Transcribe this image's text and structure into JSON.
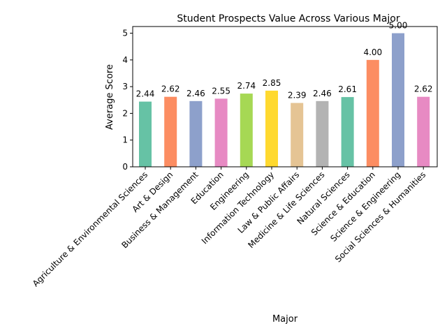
{
  "chart_data": {
    "type": "bar",
    "title": "Student Prospects Value Across Various Major",
    "xlabel": "Major",
    "ylabel": "Average Score",
    "ylim": [
      0,
      5.25
    ],
    "yticks": [
      "0",
      "1",
      "2",
      "3",
      "4",
      "5"
    ],
    "grid": false,
    "categories": [
      "Agriculture & Environmental Sciences",
      "Art & Design",
      "Business & Management",
      "Education",
      "Engineering",
      "Information Technology",
      "Law & Public Affairs",
      "Medicine & Life Sciences",
      "Natural Sciences",
      "Science & Education",
      "Science & Engineering",
      "Social Sciences & Humanities"
    ],
    "values": [
      2.44,
      2.62,
      2.46,
      2.55,
      2.74,
      2.85,
      2.39,
      2.46,
      2.61,
      4.0,
      5.0,
      2.62
    ],
    "data_labels": [
      "2.44",
      "2.62",
      "2.46",
      "2.55",
      "2.74",
      "2.85",
      "2.39",
      "2.46",
      "2.61",
      "4.00",
      "5.00",
      "2.62"
    ],
    "colors": [
      "#66c2a5",
      "#fc8d62",
      "#8da0cb",
      "#e78ac3",
      "#a6d854",
      "#ffd92f",
      "#e5c494",
      "#b3b3b3",
      "#66c2a5",
      "#fc8d62",
      "#8da0cb",
      "#e78ac3"
    ]
  }
}
